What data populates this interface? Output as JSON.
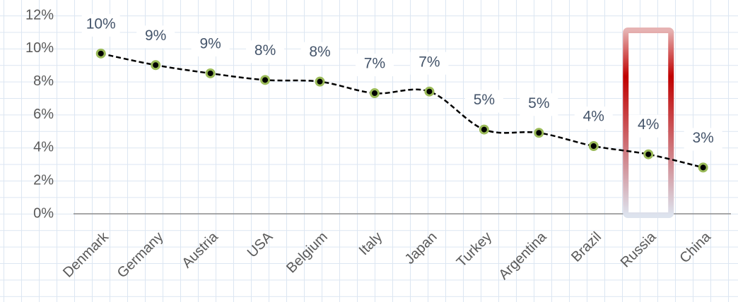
{
  "chart_data": {
    "type": "line",
    "categories": [
      "Denmark",
      "Germany",
      "Austria",
      "USA",
      "Belgium",
      "Italy",
      "Japan",
      "Turkey",
      "Argentina",
      "Brazil",
      "Russia",
      "China"
    ],
    "values": [
      9.7,
      9.0,
      8.5,
      8.1,
      8.0,
      7.3,
      7.4,
      5.1,
      4.9,
      4.1,
      3.6,
      2.8
    ],
    "value_labels": [
      "10%",
      "9%",
      "9%",
      "8%",
      "8%",
      "7%",
      "7%",
      "5%",
      "5%",
      "4%",
      "4%",
      "3%"
    ],
    "color": "#000000",
    "marker_color": "#9bbb59",
    "ylim": [
      0,
      12
    ],
    "yticks": [
      {
        "value": 0,
        "label": "0%"
      },
      {
        "value": 2,
        "label": "2%"
      },
      {
        "value": 4,
        "label": "4%"
      },
      {
        "value": 6,
        "label": "6%"
      },
      {
        "value": 8,
        "label": "8%"
      },
      {
        "value": 10,
        "label": "10%"
      },
      {
        "value": 12,
        "label": "12%"
      }
    ]
  }
}
